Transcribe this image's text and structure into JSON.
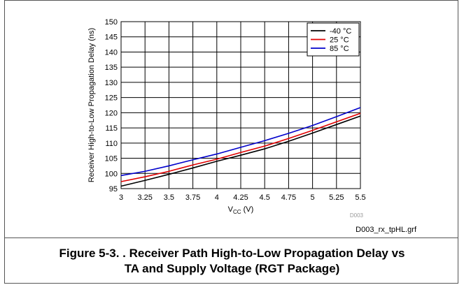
{
  "chart_data": {
    "type": "line",
    "xlabel_main": "V",
    "xlabel_sub": "CC",
    "xlabel_unit": " (V)",
    "ylabel": "Receiver High-to-Low Propagation Delay (ns)",
    "xlim": [
      3,
      5.5
    ],
    "ylim": [
      95,
      150
    ],
    "x_ticks": [
      "3",
      "3.25",
      "3.5",
      "3.75",
      "4",
      "4.25",
      "4.5",
      "4.75",
      "5",
      "5.25",
      "5.5"
    ],
    "y_ticks": [
      "95",
      "100",
      "105",
      "110",
      "115",
      "120",
      "125",
      "130",
      "135",
      "140",
      "145",
      "150"
    ],
    "grid": true,
    "legend_position": "top-right",
    "watermark": "D003",
    "x": [
      3,
      3.25,
      3.5,
      3.75,
      4,
      4.25,
      4.5,
      4.75,
      5,
      5.25,
      5.5
    ],
    "series": [
      {
        "name": "-40 °C",
        "color": "#000000",
        "values": [
          95.8,
          97.7,
          99.7,
          101.8,
          104.0,
          106.0,
          108.1,
          110.6,
          113.3,
          116.1,
          118.9
        ]
      },
      {
        "name": "25 °C",
        "color": "#e00000",
        "values": [
          97.3,
          98.9,
          100.7,
          102.8,
          104.7,
          106.9,
          109.0,
          111.5,
          114.2,
          117.0,
          119.8
        ]
      },
      {
        "name": "85 °C",
        "color": "#0000cc",
        "values": [
          99.3,
          100.7,
          102.5,
          104.5,
          106.4,
          108.6,
          110.8,
          113.2,
          115.8,
          118.7,
          121.7
        ]
      }
    ]
  },
  "file_label": "D003_rx_tpHL.grf",
  "caption_line1": "Figure 5-3. . Receiver Path High-to-Low Propagation Delay vs",
  "caption_line2": "TA and Supply Voltage (RGT Package)"
}
